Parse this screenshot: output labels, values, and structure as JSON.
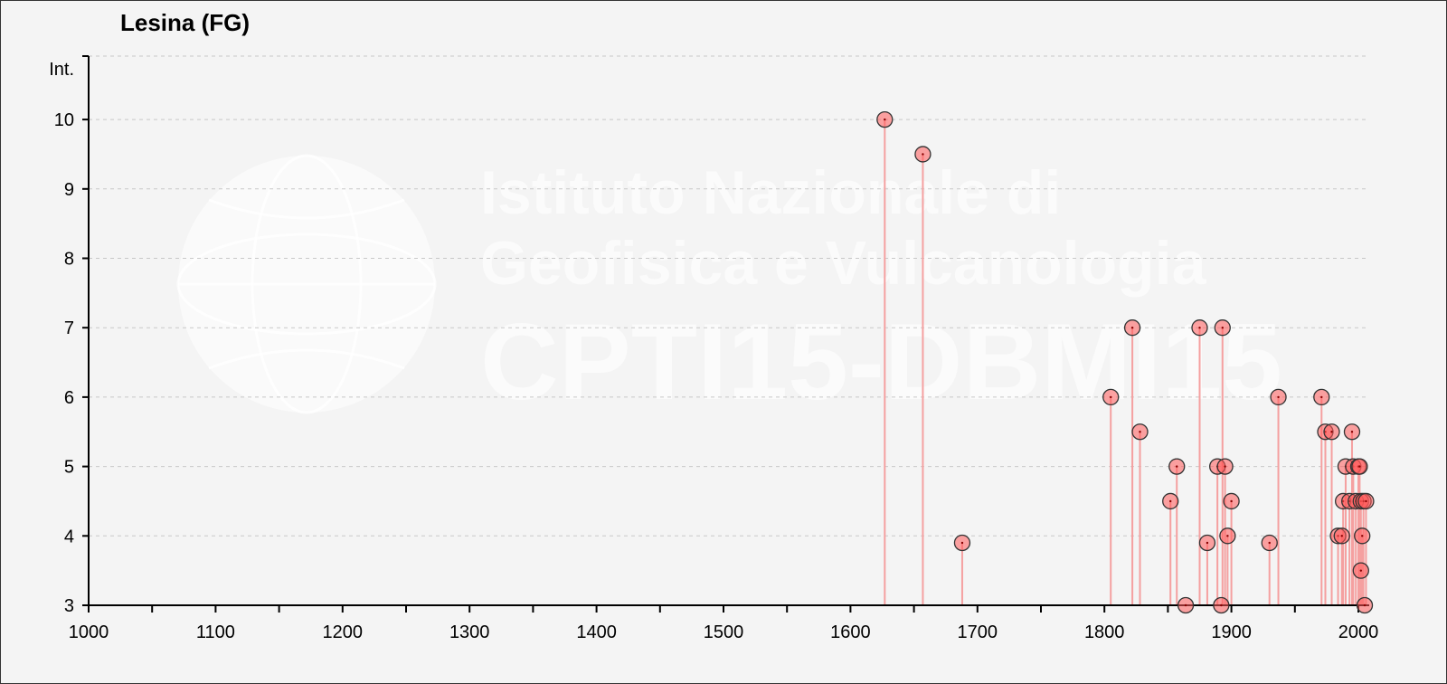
{
  "watermark": {
    "line1": "Istituto Nazionale di",
    "line2": "Geofisica e Vulcanologia",
    "line3": "CPTI15-DBMI15"
  },
  "chart_data": {
    "type": "scatter",
    "title": "Lesina (FG)",
    "xlabel": "",
    "ylabel": "Int.",
    "xlim": [
      1000,
      2020
    ],
    "ylim": [
      3,
      11
    ],
    "x_ticks": [
      1000,
      1100,
      1200,
      1300,
      1400,
      1500,
      1600,
      1700,
      1800,
      1900,
      2000
    ],
    "y_ticks": [
      3,
      4,
      5,
      6,
      7,
      8,
      9,
      10
    ],
    "y_axis_top_label": "Int.",
    "grid": "horizontal-dashed",
    "stems": true,
    "marker_color": "#ff5a5a",
    "stem_color": "#f5a0a0",
    "points": [
      {
        "x": 1627,
        "y": 10
      },
      {
        "x": 1657,
        "y": 9.5
      },
      {
        "x": 1688,
        "y": 3.9
      },
      {
        "x": 1805,
        "y": 6
      },
      {
        "x": 1822,
        "y": 7
      },
      {
        "x": 1828,
        "y": 5.5
      },
      {
        "x": 1852,
        "y": 4.5
      },
      {
        "x": 1857,
        "y": 5
      },
      {
        "x": 1864,
        "y": 3
      },
      {
        "x": 1875,
        "y": 7
      },
      {
        "x": 1881,
        "y": 3.9
      },
      {
        "x": 1889,
        "y": 5
      },
      {
        "x": 1892,
        "y": 3
      },
      {
        "x": 1893,
        "y": 7
      },
      {
        "x": 1895,
        "y": 5
      },
      {
        "x": 1897,
        "y": 4
      },
      {
        "x": 1900,
        "y": 4.5
      },
      {
        "x": 1930,
        "y": 3.9
      },
      {
        "x": 1937,
        "y": 6
      },
      {
        "x": 1971,
        "y": 6
      },
      {
        "x": 1974,
        "y": 5.5
      },
      {
        "x": 1979,
        "y": 5.5
      },
      {
        "x": 1984,
        "y": 4
      },
      {
        "x": 1987,
        "y": 4
      },
      {
        "x": 1988,
        "y": 4.5
      },
      {
        "x": 1990,
        "y": 5
      },
      {
        "x": 1993,
        "y": 4.5
      },
      {
        "x": 1995,
        "y": 5.5
      },
      {
        "x": 1996,
        "y": 5
      },
      {
        "x": 1998,
        "y": 4.5
      },
      {
        "x": 2000,
        "y": 5
      },
      {
        "x": 2001,
        "y": 5
      },
      {
        "x": 2002,
        "y": 4.5
      },
      {
        "x": 2002,
        "y": 3.5
      },
      {
        "x": 2003,
        "y": 4
      },
      {
        "x": 2004,
        "y": 4.5
      },
      {
        "x": 2005,
        "y": 3
      },
      {
        "x": 2006,
        "y": 4.5
      }
    ]
  }
}
